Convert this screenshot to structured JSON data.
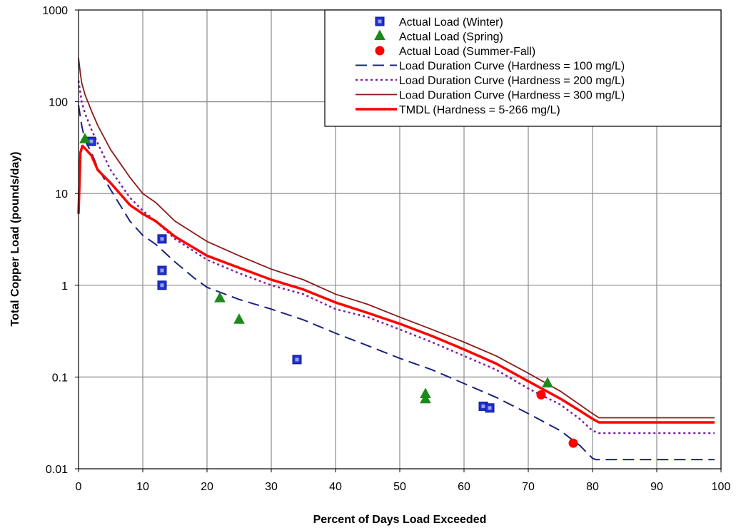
{
  "chart_data": {
    "type": "scatter",
    "xlabel": "Percent of Days Load Exceeded",
    "ylabel": "Total Copper Load (pounds/day)",
    "xlim": [
      0,
      100
    ],
    "ylim": [
      0.01,
      1000
    ],
    "yscale": "log",
    "grid": true,
    "legend_position": "top-right",
    "x_ticks": [
      "0",
      "10",
      "20",
      "30",
      "40",
      "50",
      "60",
      "70",
      "80",
      "90",
      "100"
    ],
    "y_ticks": [
      "0.01",
      "0.1",
      "1",
      "10",
      "100",
      "1000"
    ],
    "series": [
      {
        "name": "Actual Load (Winter)",
        "kind": "scatter",
        "marker": "square",
        "color": "#1f2fd0",
        "points": [
          [
            2,
            37
          ],
          [
            13,
            3.2
          ],
          [
            13,
            1.45
          ],
          [
            13,
            1.0
          ],
          [
            34,
            0.155
          ],
          [
            63,
            0.048
          ],
          [
            64,
            0.046
          ]
        ]
      },
      {
        "name": "Actual Load (Spring)",
        "kind": "scatter",
        "marker": "triangle",
        "color": "#1a8a1a",
        "points": [
          [
            1,
            39
          ],
          [
            22,
            0.72
          ],
          [
            25,
            0.42
          ],
          [
            54,
            0.065
          ],
          [
            54,
            0.057
          ],
          [
            73,
            0.085
          ]
        ]
      },
      {
        "name": "Actual Load (Summer-Fall)",
        "kind": "scatter",
        "marker": "circle",
        "color": "#ff0000",
        "points": [
          [
            72,
            0.064
          ],
          [
            77,
            0.019
          ]
        ]
      },
      {
        "name": "Load Duration Curve (Hardness = 100 mg/L)",
        "kind": "line",
        "style": "dash",
        "color": "#1a237e",
        "width": 2,
        "points": [
          [
            0,
            92
          ],
          [
            0.5,
            55
          ],
          [
            1,
            38
          ],
          [
            2,
            28
          ],
          [
            3,
            19
          ],
          [
            5,
            11
          ],
          [
            8,
            5
          ],
          [
            10,
            3.5
          ],
          [
            12,
            2.8
          ],
          [
            15,
            1.8
          ],
          [
            18,
            1.2
          ],
          [
            20,
            0.95
          ],
          [
            25,
            0.7
          ],
          [
            30,
            0.55
          ],
          [
            35,
            0.42
          ],
          [
            40,
            0.3
          ],
          [
            45,
            0.22
          ],
          [
            50,
            0.16
          ],
          [
            55,
            0.12
          ],
          [
            60,
            0.085
          ],
          [
            65,
            0.06
          ],
          [
            70,
            0.04
          ],
          [
            75,
            0.026
          ],
          [
            78,
            0.018
          ],
          [
            80,
            0.013
          ],
          [
            80.5,
            0.0126
          ],
          [
            99,
            0.0126
          ]
        ]
      },
      {
        "name": "Load Duration Curve (Hardness = 200 mg/L)",
        "kind": "line",
        "style": "dot",
        "color": "#7b1fa2",
        "width": 2.5,
        "points": [
          [
            0,
            170
          ],
          [
            0.5,
            100
          ],
          [
            1,
            75
          ],
          [
            2,
            50
          ],
          [
            3,
            35
          ],
          [
            5,
            18
          ],
          [
            8,
            9
          ],
          [
            10,
            6.5
          ],
          [
            12,
            5
          ],
          [
            15,
            3.2
          ],
          [
            20,
            1.9
          ],
          [
            25,
            1.35
          ],
          [
            30,
            1.0
          ],
          [
            35,
            0.8
          ],
          [
            40,
            0.55
          ],
          [
            45,
            0.45
          ],
          [
            50,
            0.33
          ],
          [
            55,
            0.24
          ],
          [
            60,
            0.17
          ],
          [
            65,
            0.12
          ],
          [
            70,
            0.075
          ],
          [
            75,
            0.05
          ],
          [
            78,
            0.035
          ],
          [
            80,
            0.026
          ],
          [
            81,
            0.0245
          ],
          [
            99,
            0.0245
          ]
        ]
      },
      {
        "name": "Load Duration Curve (Hardness = 300 mg/L)",
        "kind": "line",
        "style": "solid",
        "color": "#8b1a1a",
        "width": 1.8,
        "points": [
          [
            0,
            300
          ],
          [
            0.3,
            200
          ],
          [
            0.5,
            160
          ],
          [
            1,
            120
          ],
          [
            2,
            80
          ],
          [
            3,
            55
          ],
          [
            5,
            30
          ],
          [
            8,
            15
          ],
          [
            10,
            10
          ],
          [
            12,
            8
          ],
          [
            15,
            5
          ],
          [
            20,
            3
          ],
          [
            25,
            2.1
          ],
          [
            30,
            1.5
          ],
          [
            35,
            1.15
          ],
          [
            40,
            0.8
          ],
          [
            45,
            0.62
          ],
          [
            50,
            0.45
          ],
          [
            55,
            0.33
          ],
          [
            60,
            0.24
          ],
          [
            65,
            0.17
          ],
          [
            70,
            0.11
          ],
          [
            75,
            0.07
          ],
          [
            78,
            0.05
          ],
          [
            80,
            0.04
          ],
          [
            81,
            0.036
          ],
          [
            99,
            0.036
          ]
        ]
      },
      {
        "name": "TMDL (Hardness = 5-266 mg/L)",
        "kind": "line",
        "style": "solid",
        "color": "#ff0000",
        "width": 3.5,
        "points": [
          [
            0,
            6
          ],
          [
            0.1,
            10
          ],
          [
            0.3,
            28
          ],
          [
            0.6,
            33
          ],
          [
            1,
            31
          ],
          [
            2,
            26
          ],
          [
            3,
            18
          ],
          [
            5,
            13
          ],
          [
            8,
            7.5
          ],
          [
            10,
            6
          ],
          [
            12,
            5
          ],
          [
            15,
            3.4
          ],
          [
            20,
            2.1
          ],
          [
            25,
            1.55
          ],
          [
            30,
            1.15
          ],
          [
            35,
            0.9
          ],
          [
            40,
            0.65
          ],
          [
            45,
            0.5
          ],
          [
            50,
            0.38
          ],
          [
            55,
            0.28
          ],
          [
            60,
            0.2
          ],
          [
            65,
            0.14
          ],
          [
            70,
            0.09
          ],
          [
            75,
            0.058
          ],
          [
            78,
            0.043
          ],
          [
            80,
            0.035
          ],
          [
            81,
            0.032
          ],
          [
            99,
            0.032
          ]
        ]
      }
    ]
  }
}
